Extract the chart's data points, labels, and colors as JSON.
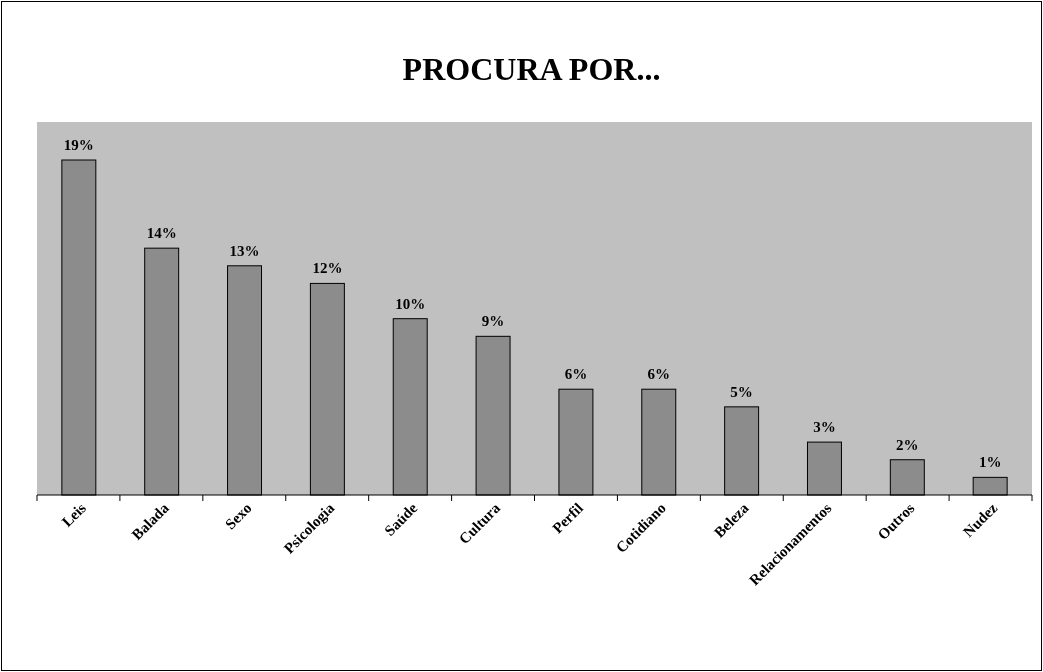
{
  "chart_data": {
    "type": "bar",
    "title": "PROCURA POR...",
    "categories": [
      "Leis",
      "Balada",
      "Sexo",
      "Psicologia",
      "Saúde",
      "Cultura",
      "Perfil",
      "Cotidiano",
      "Beleza",
      "Relacionamentos",
      "Outros",
      "Nudez"
    ],
    "values": [
      19,
      14,
      13,
      12,
      10,
      9,
      6,
      6,
      5,
      3,
      2,
      1
    ],
    "value_labels": [
      "19%",
      "14%",
      "13%",
      "12%",
      "10%",
      "9%",
      "6%",
      "6%",
      "5%",
      "3%",
      "2%",
      "1%"
    ],
    "color": "#8c8c8c"
  }
}
